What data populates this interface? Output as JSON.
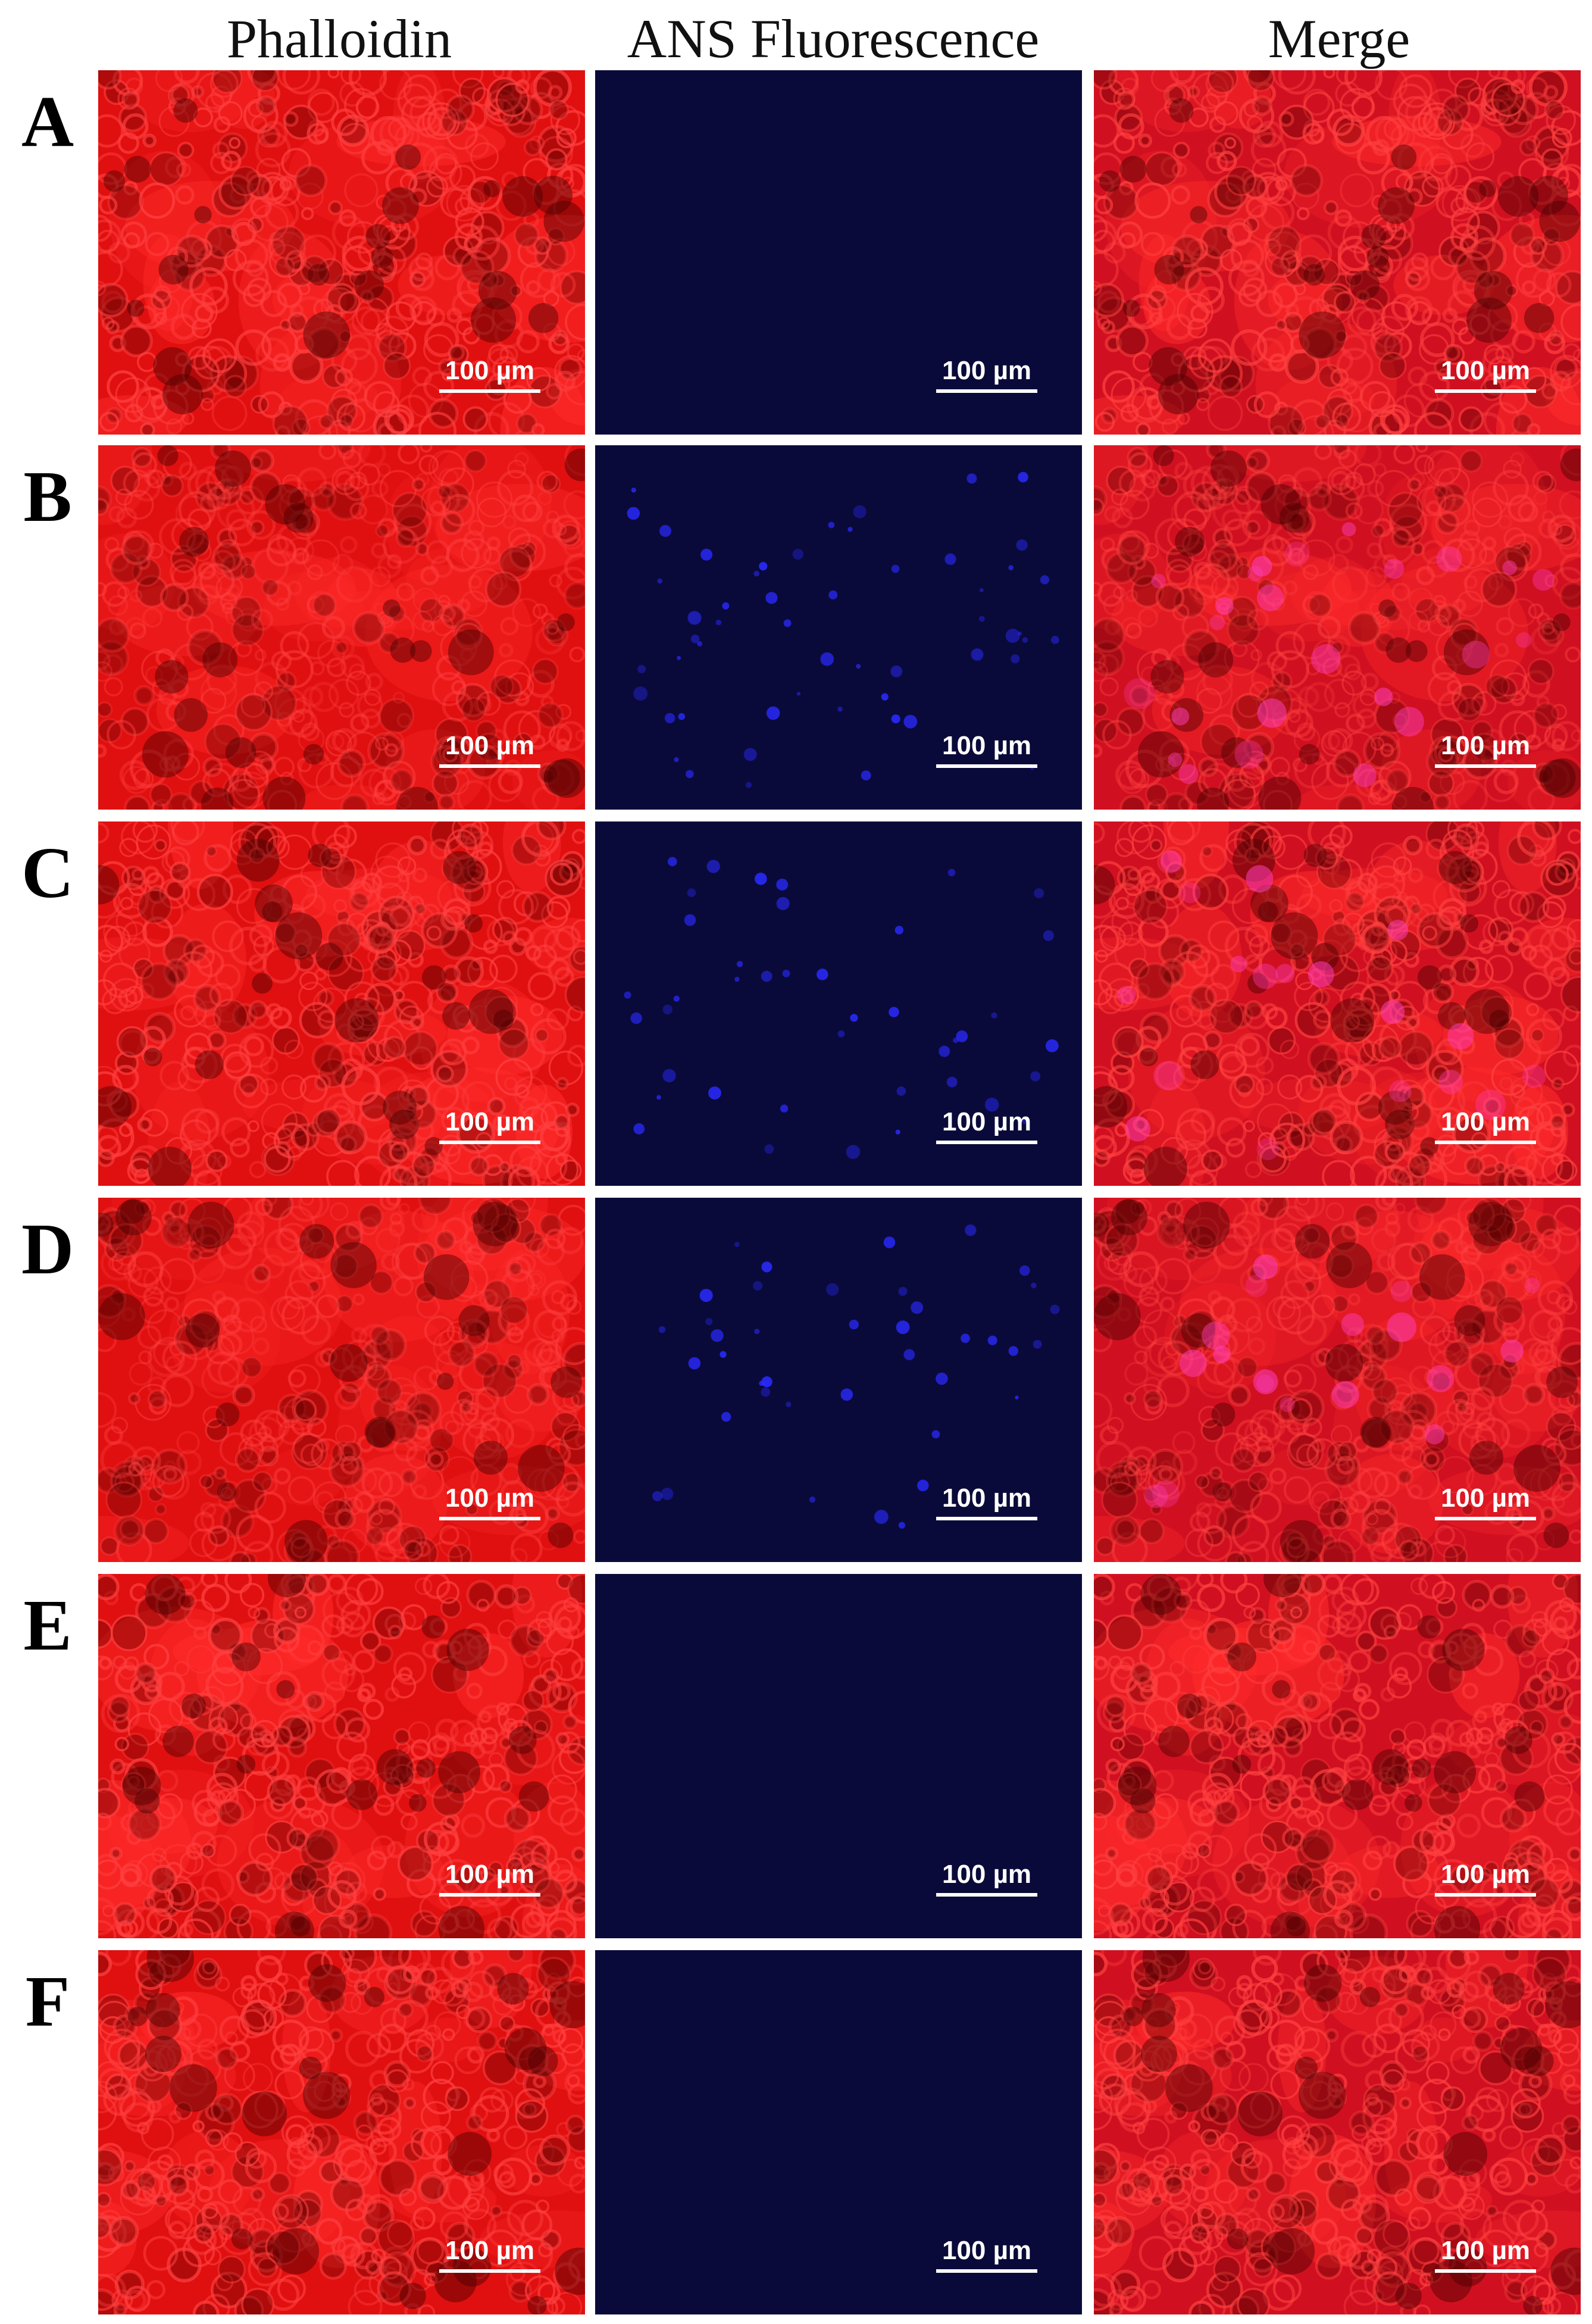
{
  "columns": [
    "Phalloidin",
    "ANS Fluorescence",
    "Merge"
  ],
  "rows": [
    {
      "label": "A",
      "blue_level": 0.0
    },
    {
      "label": "B",
      "blue_level": 0.6
    },
    {
      "label": "C",
      "blue_level": 0.45
    },
    {
      "label": "D",
      "blue_level": 0.45
    },
    {
      "label": "E",
      "blue_level": 0.0
    },
    {
      "label": "F",
      "blue_level": 0.0
    }
  ],
  "scale_label": "100 µm",
  "colors": {
    "phalloidin": "#e01010",
    "ans": "#0a0a3a",
    "ans_spot": "#2a2aff",
    "merge": "#d01020"
  }
}
